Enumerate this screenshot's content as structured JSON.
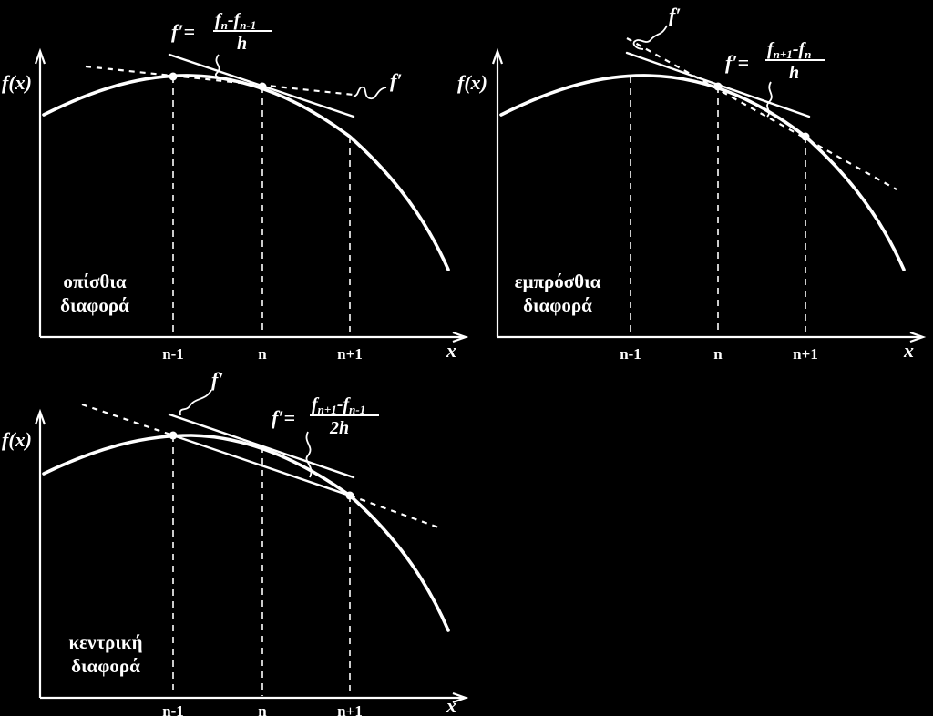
{
  "panels": [
    {
      "id": "backward",
      "y_label": "f(x)",
      "x_label": "x",
      "ticks": [
        "n-1",
        "n",
        "n+1"
      ],
      "title_lines": [
        "οπίσθια",
        "διαφορά"
      ],
      "tangent_label": "f′",
      "formula": {
        "lhs": "f′=",
        "num_a": "f",
        "num_a_sub": "n",
        "num_sep": "-",
        "num_b": "f",
        "num_b_sub": "n-1",
        "den": "h"
      }
    },
    {
      "id": "forward",
      "y_label": "f(x)",
      "x_label": "x",
      "ticks": [
        "n-1",
        "n",
        "n+1"
      ],
      "title_lines": [
        "εμπρόσθια",
        "διαφορά"
      ],
      "tangent_label": "f′",
      "formula": {
        "lhs": "f′=",
        "num_a": "f",
        "num_a_sub": "n+1",
        "num_sep": "-",
        "num_b": "f",
        "num_b_sub": "n",
        "den": "h"
      }
    },
    {
      "id": "central",
      "y_label": "f(x)",
      "x_label": "x",
      "ticks": [
        "n-1",
        "n",
        "n+1"
      ],
      "title_lines": [
        "κεντρική",
        "διαφορά"
      ],
      "tangent_label": "f′",
      "formula": {
        "lhs": "f′=",
        "num_a": "f",
        "num_a_sub": "n+1",
        "num_sep": "-",
        "num_b": "f",
        "num_b_sub": "n-1",
        "den": "2h"
      }
    }
  ]
}
